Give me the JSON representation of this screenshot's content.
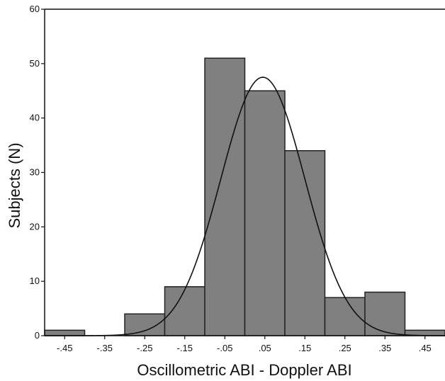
{
  "chart_data": {
    "type": "bar",
    "title": "",
    "xlabel": "Oscillometric ABI - Doppler ABI",
    "ylabel": "Subjects (N)",
    "x_tick_labels": [
      "-.45",
      "-.35",
      "-.25",
      "-.15",
      "-.05",
      ".05",
      ".15",
      ".25",
      ".35",
      ".45"
    ],
    "y_tick_labels": [
      "0",
      "10",
      "20",
      "30",
      "40",
      "50",
      "60"
    ],
    "xlim": [
      -0.5,
      0.5
    ],
    "ylim": [
      0,
      60
    ],
    "bin_width": 0.1,
    "bins": [
      {
        "center": -0.45,
        "value": 1
      },
      {
        "center": -0.35,
        "value": 0
      },
      {
        "center": -0.25,
        "value": 4
      },
      {
        "center": -0.15,
        "value": 9
      },
      {
        "center": -0.05,
        "value": 51
      },
      {
        "center": 0.05,
        "value": 45
      },
      {
        "center": 0.15,
        "value": 34
      },
      {
        "center": 0.25,
        "value": 7
      },
      {
        "center": 0.35,
        "value": 8
      },
      {
        "center": 0.45,
        "value": 1
      }
    ],
    "normal_curve": {
      "mean": 0.045,
      "peak": 47.5,
      "sd": 0.105
    },
    "bar_color": "#808080",
    "bar_edge_color": "#222222",
    "grid": false
  }
}
